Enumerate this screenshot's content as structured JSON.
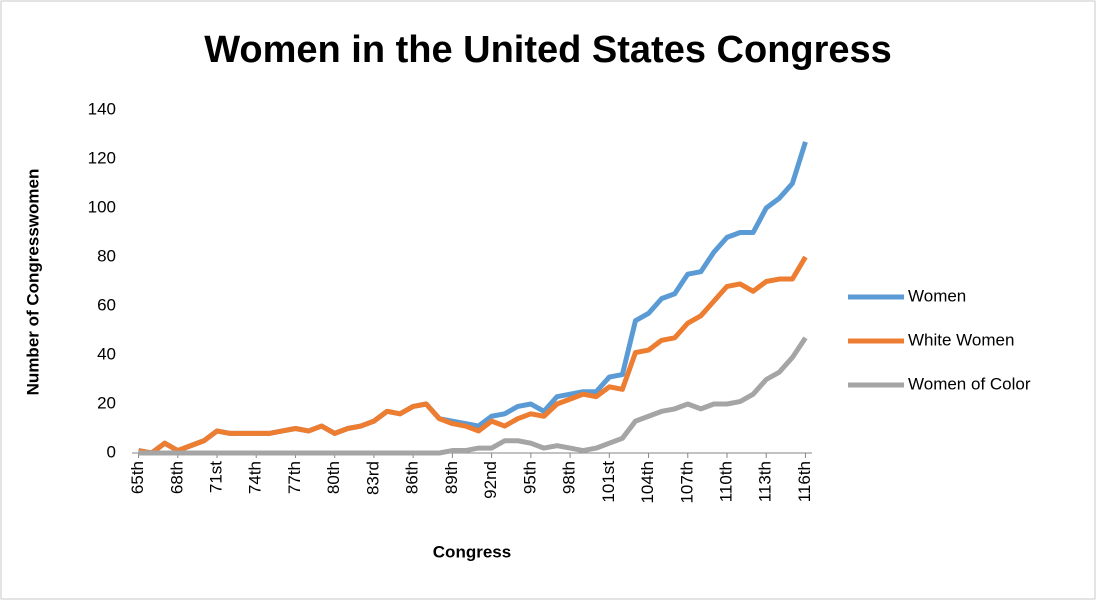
{
  "chart_data": {
    "type": "line",
    "title": "Women in the United States Congress",
    "x_label": "Congress",
    "y_label": "Number of Congresswomen",
    "categories": [
      "65th",
      null,
      null,
      "68th",
      null,
      null,
      "71st",
      null,
      null,
      "74th",
      null,
      null,
      "77th",
      null,
      null,
      "80th",
      null,
      null,
      "83rd",
      null,
      null,
      "86th",
      null,
      null,
      "89th",
      null,
      null,
      "92nd",
      null,
      null,
      "95th",
      null,
      null,
      "98th",
      null,
      null,
      "101st",
      null,
      null,
      "104th",
      null,
      null,
      "107th",
      null,
      null,
      "110th",
      null,
      null,
      "113th",
      null,
      null,
      "116th"
    ],
    "series": [
      {
        "name": "Women",
        "color": "#5b9bd5",
        "values": [
          1,
          0,
          4,
          1,
          3,
          5,
          9,
          8,
          8,
          8,
          8,
          9,
          10,
          9,
          11,
          8,
          10,
          11,
          13,
          17,
          16,
          19,
          20,
          14,
          13,
          12,
          11,
          15,
          16,
          19,
          20,
          17,
          23,
          24,
          25,
          25,
          31,
          32,
          54,
          57,
          63,
          65,
          73,
          74,
          82,
          88,
          90,
          90,
          100,
          104,
          110,
          127
        ]
      },
      {
        "name": "White Women",
        "color": "#ed7d31",
        "values": [
          1,
          0,
          4,
          1,
          3,
          5,
          9,
          8,
          8,
          8,
          8,
          9,
          10,
          9,
          11,
          8,
          10,
          11,
          13,
          17,
          16,
          19,
          20,
          14,
          12,
          11,
          9,
          13,
          11,
          14,
          16,
          15,
          20,
          22,
          24,
          23,
          27,
          26,
          41,
          42,
          46,
          47,
          53,
          56,
          62,
          68,
          69,
          66,
          70,
          71,
          71,
          80
        ]
      },
      {
        "name": "Women of Color",
        "color": "#a5a5a5",
        "values": [
          0,
          0,
          0,
          0,
          0,
          0,
          0,
          0,
          0,
          0,
          0,
          0,
          0,
          0,
          0,
          0,
          0,
          0,
          0,
          0,
          0,
          0,
          0,
          0,
          1,
          1,
          2,
          2,
          5,
          5,
          4,
          2,
          3,
          2,
          1,
          2,
          4,
          6,
          13,
          15,
          17,
          18,
          20,
          18,
          20,
          20,
          21,
          24,
          30,
          33,
          39,
          47
        ]
      }
    ],
    "ylim": [
      0,
      140
    ],
    "yticks": [
      0,
      20,
      40,
      60,
      80,
      100,
      120,
      140
    ],
    "grid": false,
    "legend": "right"
  }
}
